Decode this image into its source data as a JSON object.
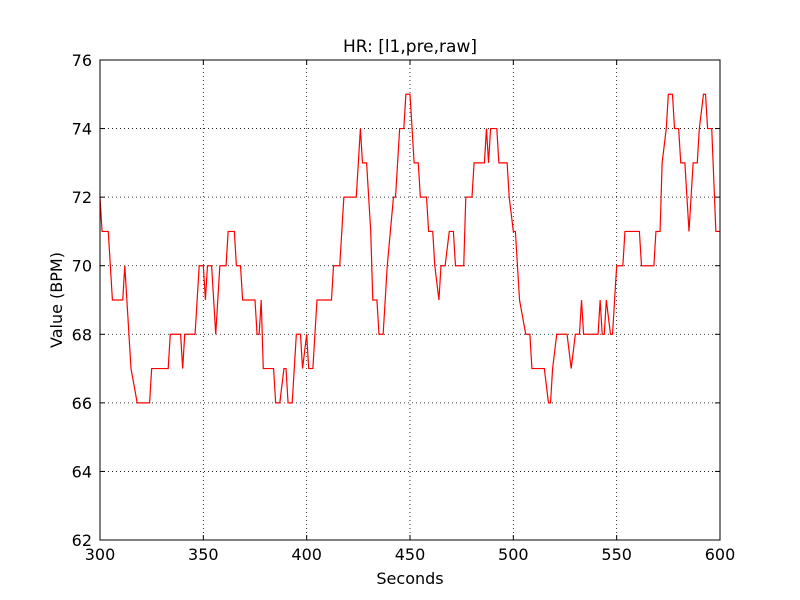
{
  "chart_data": {
    "type": "line",
    "title": "HR: [l1,pre,raw]",
    "xlabel": "Seconds",
    "ylabel": "Value (BPM)",
    "x": [
      300,
      301,
      304,
      305,
      306,
      311,
      312,
      314,
      315,
      318,
      324,
      325,
      333,
      334,
      339,
      340,
      341,
      346,
      348,
      350,
      351,
      352,
      354,
      356,
      358,
      361,
      362,
      365,
      366,
      368,
      369,
      375,
      376,
      377,
      378,
      379,
      384,
      385,
      387,
      389,
      390,
      391,
      393,
      395,
      397,
      398,
      400,
      401,
      403,
      405,
      412,
      413,
      416,
      418,
      424,
      425,
      426,
      427,
      429,
      431,
      432,
      434,
      435,
      437,
      438,
      439,
      442,
      443,
      445,
      447,
      448,
      450,
      451,
      452,
      454,
      455,
      458,
      459,
      461,
      462,
      464,
      465,
      467,
      469,
      471,
      472,
      476,
      477,
      480,
      481,
      486,
      487,
      488,
      489,
      492,
      493,
      497,
      498,
      500,
      501,
      502,
      503,
      506,
      508,
      509,
      515,
      517,
      518,
      519,
      521,
      526,
      528,
      530,
      532,
      533,
      534,
      541,
      542,
      543,
      544,
      545,
      547,
      548,
      550,
      553,
      554,
      561,
      562,
      568,
      569,
      571,
      572,
      574,
      575,
      577,
      578,
      580,
      581,
      583,
      584,
      585,
      587,
      589,
      590,
      592,
      593,
      594,
      596,
      598,
      600
    ],
    "series": [
      {
        "name": "HR",
        "color": "#ff0000",
        "values": [
          72,
          71,
          71,
          70,
          69,
          69,
          70,
          68,
          67,
          66,
          66,
          67,
          67,
          68,
          68,
          67,
          68,
          68,
          70,
          70,
          69,
          70,
          70,
          68,
          70,
          70,
          71,
          71,
          70,
          70,
          69,
          69,
          68,
          68,
          69,
          67,
          67,
          66,
          66,
          67,
          67,
          66,
          66,
          68,
          68,
          67,
          68,
          67,
          67,
          69,
          69,
          70,
          70,
          72,
          72,
          73,
          74,
          73,
          73,
          71,
          69,
          69,
          68,
          68,
          69,
          70,
          72,
          72,
          74,
          74,
          75,
          75,
          74,
          73,
          73,
          72,
          72,
          71,
          71,
          70,
          69,
          70,
          70,
          71,
          71,
          70,
          70,
          72,
          72,
          73,
          73,
          74,
          73,
          74,
          74,
          73,
          73,
          72,
          71,
          71,
          70,
          69,
          68,
          68,
          67,
          67,
          66,
          66,
          67,
          68,
          68,
          67,
          68,
          68,
          69,
          68,
          68,
          69,
          68,
          68,
          69,
          68,
          68,
          70,
          70,
          71,
          71,
          70,
          70,
          71,
          71,
          73,
          74,
          75,
          75,
          74,
          74,
          73,
          73,
          72,
          71,
          73,
          73,
          74,
          75,
          75,
          74,
          74,
          71,
          71
        ]
      }
    ],
    "xlim": [
      300,
      600
    ],
    "xticks": [
      300,
      350,
      400,
      450,
      500,
      550,
      600
    ],
    "ylim": [
      62,
      76
    ],
    "yticks": [
      62,
      64,
      66,
      68,
      70,
      72,
      74,
      76
    ],
    "grid": true
  }
}
